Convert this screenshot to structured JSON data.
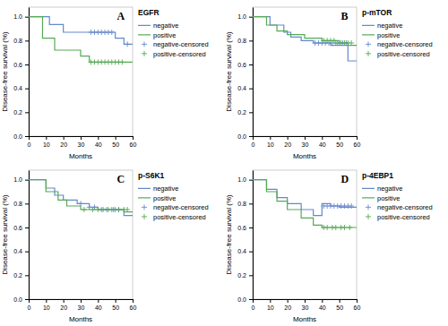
{
  "chart_data": [
    {
      "type": "line",
      "title": "EGFR",
      "annotations": [
        "A"
      ],
      "xlabel": "Months",
      "ylabel": "Disease-free survival (%)",
      "xlim": [
        0,
        60
      ],
      "ylim": [
        0,
        1.08
      ],
      "xticks": [
        0,
        10,
        20,
        30,
        40,
        50,
        60
      ],
      "yticks": [
        {
          "value": 0,
          "label": "0.0"
        },
        0.2,
        0.4,
        0.6,
        0.8,
        {
          "value": 1,
          "label": "1.0"
        }
      ],
      "grid": false,
      "legend": "right",
      "series": [
        {
          "name": "negative",
          "type": "step",
          "color": "#6688cc",
          "x": [
            0,
            12,
            12,
            20,
            20,
            35,
            50,
            50,
            55,
            55,
            60
          ],
          "values": [
            1.0,
            1.0,
            0.935,
            0.935,
            0.87,
            0.87,
            0.87,
            0.82,
            0.82,
            0.77,
            0.77
          ]
        },
        {
          "name": "positive",
          "type": "step",
          "color": "#55aa55",
          "x": [
            0,
            8,
            8,
            15,
            15,
            30,
            30,
            35,
            35,
            60
          ],
          "values": [
            1.0,
            1.0,
            0.82,
            0.82,
            0.72,
            0.72,
            0.67,
            0.67,
            0.62,
            0.62
          ]
        },
        {
          "name": "negative-censored",
          "type": "scatter",
          "marker": "+",
          "color": "#6688cc",
          "x": [
            36,
            38,
            40,
            42,
            44,
            46,
            48,
            57
          ],
          "values": [
            0.87,
            0.87,
            0.87,
            0.87,
            0.87,
            0.87,
            0.87,
            0.77
          ]
        },
        {
          "name": "positive-censored",
          "type": "scatter",
          "marker": "+",
          "color": "#55aa55",
          "x": [
            36,
            38,
            40,
            42,
            44,
            46,
            48,
            50,
            52,
            54
          ],
          "values": [
            0.62,
            0.62,
            0.62,
            0.62,
            0.62,
            0.62,
            0.62,
            0.62,
            0.62,
            0.62
          ]
        }
      ]
    },
    {
      "type": "line",
      "title": "p-mTOR",
      "annotations": [
        "B"
      ],
      "xlabel": "Months",
      "ylabel": "Disease-free survival (%)",
      "xlim": [
        0,
        60
      ],
      "ylim": [
        0,
        1.08
      ],
      "xticks": [
        0,
        10,
        20,
        30,
        40,
        50,
        60
      ],
      "yticks": [
        {
          "value": 0,
          "label": "0.0"
        },
        0.2,
        0.4,
        0.6,
        0.8,
        {
          "value": 1,
          "label": "1.0"
        }
      ],
      "grid": false,
      "legend": "right",
      "series": [
        {
          "name": "negative",
          "type": "step",
          "color": "#6688cc",
          "x": [
            0,
            10,
            10,
            18,
            18,
            22,
            22,
            28,
            28,
            35,
            35,
            45,
            45,
            55,
            55,
            60
          ],
          "values": [
            1.0,
            1.0,
            0.93,
            0.93,
            0.87,
            0.87,
            0.83,
            0.83,
            0.8,
            0.8,
            0.78,
            0.78,
            0.76,
            0.76,
            0.63,
            0.63
          ]
        },
        {
          "name": "positive",
          "type": "step",
          "color": "#55aa55",
          "x": [
            0,
            8,
            8,
            14,
            14,
            20,
            20,
            30,
            30,
            40,
            40,
            50,
            50,
            55,
            55,
            60
          ],
          "values": [
            1.0,
            1.0,
            0.93,
            0.93,
            0.88,
            0.88,
            0.85,
            0.85,
            0.82,
            0.82,
            0.8,
            0.8,
            0.78,
            0.78,
            0.76,
            0.76
          ]
        },
        {
          "name": "negative-censored",
          "type": "scatter",
          "marker": "+",
          "color": "#6688cc",
          "x": [
            36,
            38,
            40,
            42,
            44,
            46,
            48,
            50,
            52,
            54
          ],
          "values": [
            0.78,
            0.78,
            0.78,
            0.78,
            0.78,
            0.78,
            0.78,
            0.78,
            0.78,
            0.78
          ]
        },
        {
          "name": "positive-censored",
          "type": "scatter",
          "marker": "+",
          "color": "#55aa55",
          "x": [
            41,
            43,
            45,
            47,
            49,
            51,
            53,
            55,
            57
          ],
          "values": [
            0.8,
            0.8,
            0.8,
            0.8,
            0.78,
            0.78,
            0.78,
            0.78,
            0.78
          ]
        }
      ]
    },
    {
      "type": "line",
      "title": "p-S6K1",
      "annotations": [
        "C"
      ],
      "xlabel": "Months",
      "ylabel": "Disease-free survival (%)",
      "xlim": [
        0,
        60
      ],
      "ylim": [
        0,
        1.08
      ],
      "xticks": [
        0,
        10,
        20,
        30,
        40,
        50,
        60
      ],
      "yticks": [
        {
          "value": 0,
          "label": "0.0"
        },
        0.2,
        0.4,
        0.6,
        0.8,
        {
          "value": 1,
          "label": "1.0"
        }
      ],
      "grid": false,
      "legend": "right",
      "series": [
        {
          "name": "negative",
          "type": "step",
          "color": "#6688cc",
          "x": [
            0,
            10,
            10,
            15,
            15,
            20,
            20,
            28,
            28,
            35,
            35,
            40,
            40,
            55,
            55,
            60
          ],
          "values": [
            1.0,
            1.0,
            0.93,
            0.93,
            0.87,
            0.87,
            0.83,
            0.83,
            0.8,
            0.8,
            0.77,
            0.77,
            0.75,
            0.75,
            0.7,
            0.7
          ]
        },
        {
          "name": "positive",
          "type": "step",
          "color": "#55aa55",
          "x": [
            0,
            10,
            10,
            17,
            17,
            22,
            22,
            30,
            30,
            55,
            55,
            60
          ],
          "values": [
            1.0,
            1.0,
            0.9,
            0.9,
            0.83,
            0.83,
            0.78,
            0.78,
            0.75,
            0.75,
            0.73,
            0.73
          ]
        },
        {
          "name": "negative-censored",
          "type": "scatter",
          "marker": "+",
          "color": "#6688cc",
          "x": [
            30,
            35,
            38,
            42,
            45,
            48,
            50,
            52
          ],
          "values": [
            0.8,
            0.77,
            0.77,
            0.75,
            0.75,
            0.75,
            0.75,
            0.75
          ]
        },
        {
          "name": "positive-censored",
          "type": "scatter",
          "marker": "+",
          "color": "#55aa55",
          "x": [
            32,
            37,
            40,
            43,
            46,
            49,
            52,
            55,
            57
          ],
          "values": [
            0.75,
            0.75,
            0.75,
            0.75,
            0.75,
            0.75,
            0.75,
            0.75,
            0.75
          ]
        }
      ]
    },
    {
      "type": "line",
      "title": "p-4EBP1",
      "annotations": [
        "D"
      ],
      "xlabel": "Months",
      "ylabel": "Disease-free survival (%)",
      "xlim": [
        0,
        60
      ],
      "ylim": [
        0,
        1.08
      ],
      "xticks": [
        0,
        10,
        20,
        30,
        40,
        50,
        60
      ],
      "yticks": [
        {
          "value": 0,
          "label": "0.0"
        },
        0.2,
        0.4,
        0.6,
        0.8,
        {
          "value": 1,
          "label": "1.0"
        }
      ],
      "grid": false,
      "legend": "right",
      "series": [
        {
          "name": "negative",
          "type": "step",
          "color": "#6688cc",
          "x": [
            0,
            8,
            8,
            14,
            14,
            20,
            20,
            28,
            28,
            35,
            35,
            40,
            40,
            45,
            45,
            50,
            50,
            55,
            55,
            60
          ],
          "values": [
            1.0,
            1.0,
            0.92,
            0.92,
            0.85,
            0.85,
            0.8,
            0.8,
            0.75,
            0.75,
            0.7,
            0.7,
            0.8,
            0.8,
            0.78,
            0.78,
            0.77,
            0.77,
            0.77,
            0.77
          ]
        },
        {
          "name": "positive",
          "type": "step",
          "color": "#55aa55",
          "x": [
            0,
            8,
            8,
            14,
            14,
            20,
            20,
            28,
            28,
            35,
            35,
            40,
            40,
            55,
            55,
            60
          ],
          "values": [
            1.0,
            1.0,
            0.9,
            0.9,
            0.82,
            0.82,
            0.75,
            0.75,
            0.68,
            0.68,
            0.62,
            0.62,
            0.6,
            0.6,
            0.6,
            0.6
          ]
        },
        {
          "name": "negative-censored",
          "type": "scatter",
          "marker": "+",
          "color": "#6688cc",
          "x": [
            41,
            43,
            45,
            47,
            49,
            51,
            53,
            55,
            57
          ],
          "values": [
            0.78,
            0.78,
            0.78,
            0.78,
            0.78,
            0.78,
            0.78,
            0.78,
            0.78
          ]
        },
        {
          "name": "positive-censored",
          "type": "scatter",
          "marker": "+",
          "color": "#55aa55",
          "x": [
            41,
            43,
            46,
            48,
            51,
            53,
            56
          ],
          "values": [
            0.6,
            0.6,
            0.6,
            0.6,
            0.6,
            0.6,
            0.6
          ]
        }
      ]
    }
  ]
}
